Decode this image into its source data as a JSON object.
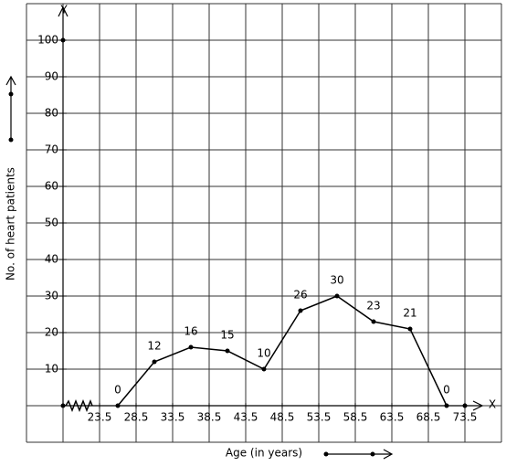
{
  "chart_data": {
    "type": "line",
    "x_label": "Age (in years)",
    "y_label": "No. of heart patients",
    "x_axis_name": "X",
    "y_axis_name": "Y",
    "x": [
      26,
      31,
      36,
      41,
      46,
      51,
      56,
      61,
      66,
      71
    ],
    "values": [
      0,
      12,
      16,
      15,
      10,
      26,
      30,
      23,
      21,
      0
    ],
    "color": "#000000",
    "xlim": [
      18.5,
      76
    ],
    "xticks": [
      23.5,
      28.5,
      33.5,
      38.5,
      43.5,
      48.5,
      53.5,
      58.5,
      63.5,
      68.5,
      73.5
    ],
    "ylim": [
      0,
      110
    ],
    "yticks": [
      10,
      20,
      30,
      40,
      50,
      60,
      70,
      80,
      90,
      100
    ]
  }
}
